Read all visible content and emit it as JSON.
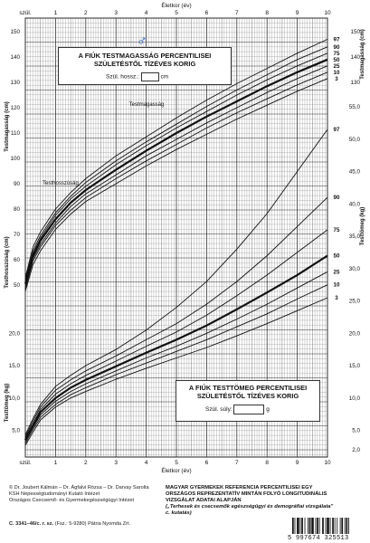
{
  "header": {
    "x_axis_label_top": "Életkor (év)",
    "x_axis_label_bottom": "Életkor (év)",
    "birth_label_top": "szül.",
    "birth_label_bottom": "szül."
  },
  "height_box": {
    "title_line1": "A FIÚK TESTMAGASSÁG PERCENTILISEI",
    "title_line2": "SZÜLETÉSTŐL TÍZÉVES KORIG",
    "field_label": "Szül. hossz.:",
    "field_unit": "cm",
    "symbol": "♂"
  },
  "weight_box": {
    "title_line1": "A FIÚK TESTTÖMEG PERCENTILISEI",
    "title_line2": "SZÜLETÉSTŐL TÍZÉVES KORIG",
    "field_label": "Szül. súly:",
    "field_unit": "g"
  },
  "chart_data": [
    {
      "type": "line",
      "title": "A FIÚK TESTMAGASSÁG PERCENTILISEI SZÜLETÉSTŐL TÍZÉVES KORIG",
      "xlabel": "Életkor (év)",
      "ylabel_left_upper": "Testmagasság (cm)",
      "ylabel_left_lower": "Testhosszúság (cm)",
      "ylabel_right": "Testmagasság (cm)",
      "curve_label_upper": "Testmagasság",
      "curve_label_lower": "Testhosszúság",
      "xlim": [
        0,
        10
      ],
      "ylim": [
        45,
        155
      ],
      "x_ticks": [
        "szül.",
        "1",
        "2",
        "3",
        "4",
        "5",
        "6",
        "7",
        "8",
        "9",
        "10"
      ],
      "y_ticks_left": [
        "50",
        "60",
        "70",
        "80",
        "90",
        "100",
        "110",
        "120",
        "130",
        "140",
        "150"
      ],
      "y_ticks_right": [
        "130",
        "140",
        "150"
      ],
      "grid": true,
      "x": [
        0,
        0.25,
        0.5,
        1,
        1.5,
        2,
        3,
        4,
        5,
        6,
        7,
        8,
        9,
        10
      ],
      "series": [
        {
          "name": "97",
          "values": [
            53,
            65,
            71,
            80,
            86.5,
            92,
            101,
            108.5,
            116,
            123,
            129.5,
            135.5,
            141.5,
            147
          ]
        },
        {
          "name": "90",
          "values": [
            52,
            63.5,
            69.5,
            78.5,
            85,
            90.5,
            99,
            106.5,
            113.5,
            120.5,
            127,
            133,
            139,
            144
          ]
        },
        {
          "name": "75",
          "values": [
            51.5,
            62.5,
            68.5,
            77.5,
            84,
            89,
            97.5,
            105,
            112,
            118.5,
            125,
            131,
            136.5,
            141.5
          ]
        },
        {
          "name": "50",
          "values": [
            50.5,
            61.5,
            67.5,
            76,
            82.5,
            87.5,
            95.5,
            103,
            110,
            116.5,
            122.5,
            128.5,
            134,
            139
          ]
        },
        {
          "name": "25",
          "values": [
            49.5,
            60.5,
            66,
            74.5,
            81,
            86,
            93.5,
            101,
            107.5,
            114,
            120,
            126,
            131.5,
            136.5
          ]
        },
        {
          "name": "10",
          "values": [
            48.5,
            59.5,
            65,
            73.5,
            79.5,
            84.5,
            92,
            99,
            105.5,
            112,
            118,
            123.5,
            129,
            134
          ]
        },
        {
          "name": "3",
          "values": [
            47.5,
            58,
            63.5,
            72,
            78,
            83,
            90,
            97,
            103.5,
            109.5,
            115.5,
            121,
            126.5,
            131.5
          ]
        }
      ]
    },
    {
      "type": "line",
      "title": "A FIÚK TESTTÖMEG PERCENTILISEI SZÜLETÉSTŐL TÍZÉVES KORIG",
      "xlabel": "Életkor (év)",
      "ylabel_left": "Testtömeg (kg)",
      "ylabel_right": "Testtömeg (kg)",
      "xlim": [
        0,
        10
      ],
      "ylim": [
        2,
        58
      ],
      "x_ticks": [
        "szül.",
        "1",
        "2",
        "3",
        "4",
        "5",
        "6",
        "7",
        "8",
        "9",
        "10"
      ],
      "y_ticks_left": [
        "5,0",
        "10,0",
        "15,0",
        "20,0"
      ],
      "y_ticks_right": [
        "2,0",
        "5,0",
        "10,0",
        "15,0",
        "20,0",
        "25,0",
        "30,0",
        "35,0",
        "40,0",
        "45,0",
        "50,0",
        "55,0"
      ],
      "grid": true,
      "x": [
        0,
        0.25,
        0.5,
        1,
        1.5,
        2,
        3,
        4,
        5,
        6,
        7,
        8,
        9,
        10
      ],
      "series": [
        {
          "name": "97",
          "values": [
            4.3,
            6.8,
            9,
            11.8,
            13.5,
            15,
            17.5,
            20.5,
            24,
            28,
            33,
            38.5,
            45,
            51.5
          ]
        },
        {
          "name": "90",
          "values": [
            4,
            6.4,
            8.6,
            11.2,
            12.8,
            14.2,
            16.5,
            19,
            21.5,
            24.5,
            28,
            32,
            36.5,
            41
          ]
        },
        {
          "name": "75",
          "values": [
            3.8,
            6,
            8.2,
            10.6,
            12.2,
            13.5,
            15.7,
            18,
            20.2,
            22.8,
            25.8,
            29,
            32.5,
            36
          ]
        },
        {
          "name": "50",
          "values": [
            3.5,
            5.7,
            7.8,
            10,
            11.6,
            12.8,
            14.9,
            17,
            19,
            21.2,
            23.7,
            26.3,
            29,
            32
          ]
        },
        {
          "name": "25",
          "values": [
            3.3,
            5.4,
            7.4,
            9.5,
            11,
            12.2,
            14.2,
            16.2,
            18,
            20,
            22.2,
            24.5,
            27,
            29.5
          ]
        },
        {
          "name": "10",
          "values": [
            3,
            5.1,
            7,
            9,
            10.5,
            11.6,
            13.6,
            15.4,
            17.2,
            19,
            21,
            23,
            25.3,
            27.5
          ]
        },
        {
          "name": "3",
          "values": [
            2.7,
            4.7,
            6.6,
            8.6,
            10,
            11,
            12.9,
            14.6,
            16.2,
            17.8,
            19.6,
            21.5,
            23.5,
            25.5
          ]
        }
      ]
    }
  ],
  "footer": {
    "authors": "© Dr. Joubert Kálmán – Dr. Ágfalvi Rózsa – Dr. Darvay Sarolta",
    "institute1": "KSH Népességtudományi Kutató Intézet",
    "institute2": "Országos Csecsemő- és Gyermekegészségügyi Intézet",
    "study_line1": "MAGYAR GYERMEKEK REFERENCIA PERCENTILISEI EGY",
    "study_line2": "ORSZÁGOS REPREZENTATÍV MINTÁN FOLYÓ LONGITUDINÁLIS",
    "study_line3": "VIZSGÁLAT ADATAI ALAPJÁN",
    "study_line4": "(„Terhesek és csecsemők egészségügyi és demográfiai vizsgálata\"",
    "study_line5": "c. kutatás)",
    "form_code": "C. 3341–46/c. r. sz.",
    "form_code_extra": "(Fsz.: 5-9280) Pátria Nyomda Zrt.",
    "barcode_number": "5 997674 325513"
  }
}
